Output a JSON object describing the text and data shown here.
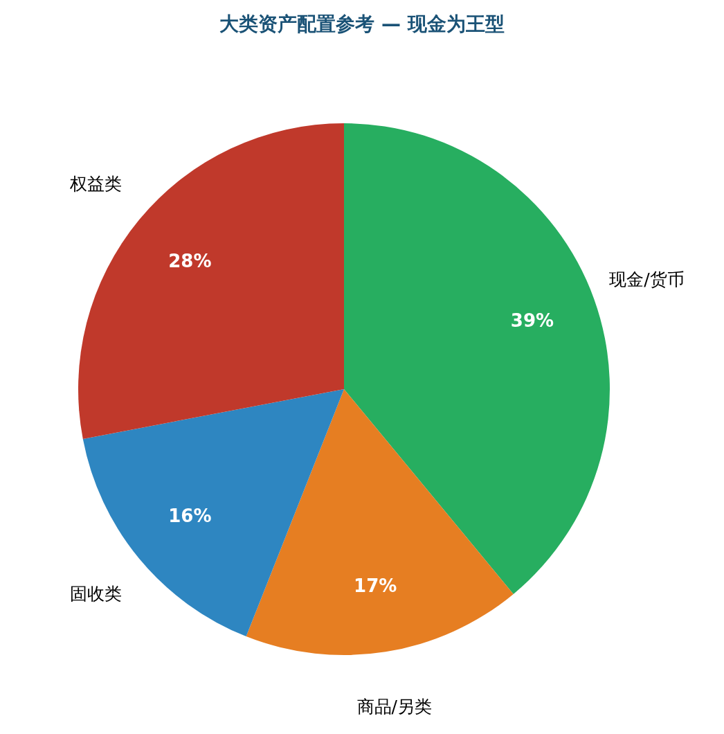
{
  "chart_data": {
    "type": "pie",
    "title": "大类资产配置参考 — 现金为王型",
    "categories": [
      "现金/货币",
      "商品/另类",
      "固收类",
      "权益类"
    ],
    "values": [
      39,
      17,
      16,
      28
    ],
    "colors": [
      "#27ae60",
      "#e67e22",
      "#2e86c1",
      "#c0392b"
    ],
    "value_labels": [
      "39%",
      "17%",
      "16%",
      "28%"
    ]
  }
}
